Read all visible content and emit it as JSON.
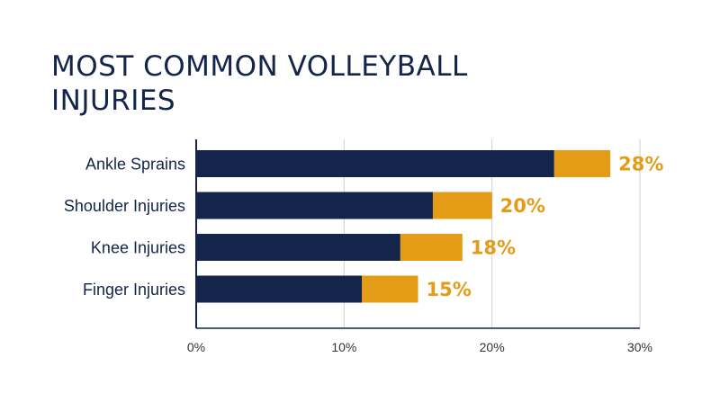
{
  "title": "MOST COMMON VOLLEYBALL INJURIES",
  "colors": {
    "primary": "#13254a",
    "accent": "#e49c16",
    "grid": "#cfcfcf",
    "axis": "#13254a"
  },
  "chart_data": {
    "type": "bar",
    "orientation": "horizontal",
    "title": "MOST COMMON VOLLEYBALL INJURIES",
    "categories": [
      "Ankle Sprains",
      "Shoulder Injuries",
      "Knee Injuries",
      "Finger Injuries"
    ],
    "values": [
      28,
      20,
      18,
      15
    ],
    "value_labels": [
      "28%",
      "20%",
      "18%",
      "15%"
    ],
    "dark_segment": [
      24.2,
      16.0,
      13.8,
      11.2
    ],
    "xlim": [
      0,
      30
    ],
    "xticks": [
      0,
      10,
      20,
      30
    ],
    "xtick_labels": [
      "0%",
      "10%",
      "20%",
      "30%"
    ],
    "grid": true,
    "legend": "none"
  }
}
